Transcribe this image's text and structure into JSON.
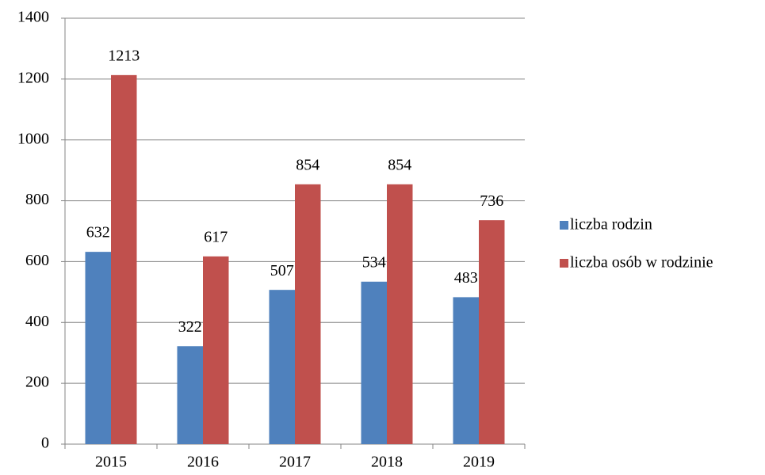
{
  "chart_data": {
    "type": "bar",
    "categories": [
      "2015",
      "2016",
      "2017",
      "2018",
      "2019"
    ],
    "series": [
      {
        "name": "liczba rodzin",
        "color": "#4f81bd",
        "values": [
          632,
          322,
          507,
          534,
          483
        ]
      },
      {
        "name": "liczba osób w rodzinie",
        "color": "#c0504d",
        "values": [
          1213,
          617,
          854,
          854,
          736
        ]
      }
    ],
    "ylim": [
      0,
      1400
    ],
    "yticks": [
      0,
      200,
      400,
      600,
      800,
      1000,
      1200,
      1400
    ],
    "grid": true,
    "legend": "right"
  }
}
